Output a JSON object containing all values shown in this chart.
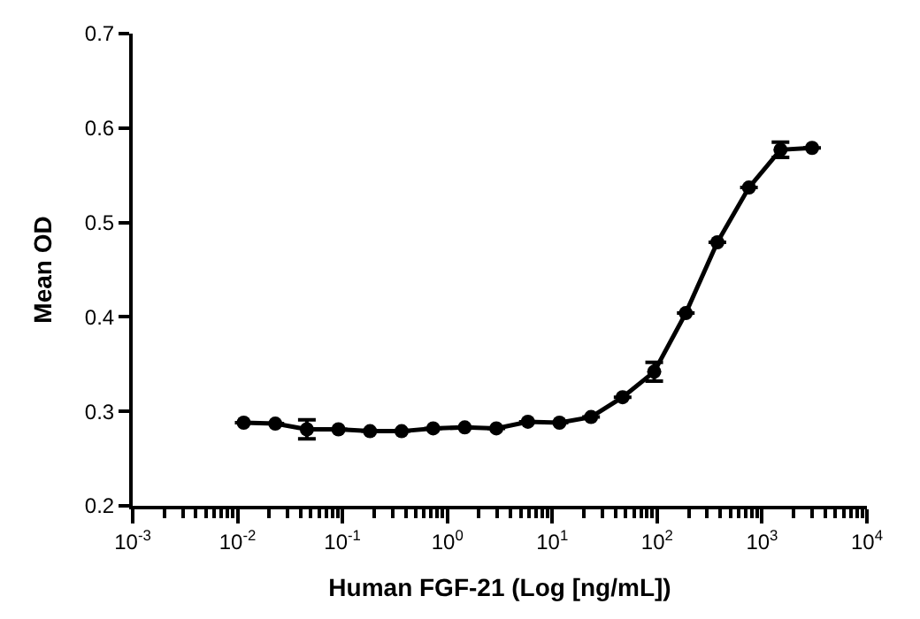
{
  "chart_data": {
    "type": "line",
    "xlabel": "Human FGF-21 (Log [ng/mL])",
    "ylabel": "Mean OD",
    "x": [
      0.01144,
      0.02289,
      0.04578,
      0.09155,
      0.1831,
      0.3662,
      0.7324,
      1.465,
      2.93,
      5.859,
      11.72,
      23.44,
      46.88,
      93.75,
      187.5,
      375,
      750,
      1500,
      3000
    ],
    "series": [
      {
        "color": "#000000",
        "values": [
          0.288,
          0.287,
          0.281,
          0.281,
          0.279,
          0.279,
          0.282,
          0.283,
          0.282,
          0.289,
          0.288,
          0.294,
          0.315,
          0.342,
          0.404,
          0.479,
          0.537,
          0.577,
          0.579
        ],
        "errors": [
          null,
          null,
          0.01,
          null,
          null,
          null,
          null,
          null,
          null,
          null,
          null,
          null,
          null,
          0.01,
          null,
          null,
          null,
          0.008,
          null
        ]
      }
    ],
    "log": "x",
    "xlim": [
      0.001,
      10000
    ],
    "xticks": [
      {
        "value": 0.001,
        "label": "10$^{-3}$"
      },
      {
        "value": 0.01,
        "label": "10$^{-2}$"
      },
      {
        "value": 0.1,
        "label": "10$^{-1}$"
      },
      {
        "value": 1,
        "label": "10$^{0}$"
      },
      {
        "value": 10,
        "label": "10$^{1}$"
      },
      {
        "value": 100,
        "label": "10$^{2}$"
      },
      {
        "value": 1000,
        "label": "10$^{3}$"
      },
      {
        "value": 10000,
        "label": "10$^{4}$"
      }
    ],
    "ylim": [
      0.2,
      0.7
    ],
    "yticks": [
      0.2,
      0.3,
      0.4,
      0.5,
      0.6,
      0.7
    ],
    "marker": "circle",
    "line_style": "solid"
  }
}
